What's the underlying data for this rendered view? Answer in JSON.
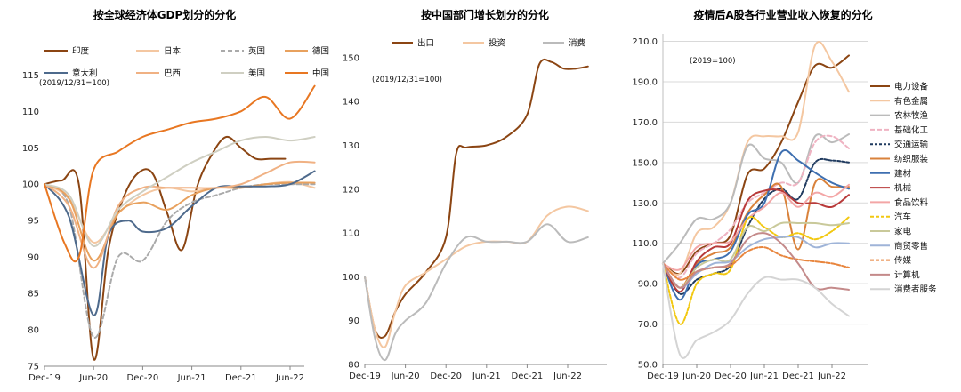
{
  "chart_data": [
    {
      "type": "line",
      "title": "按全球经济体GDP划分的分化",
      "note": "(2019/12/31=100)",
      "x_ticks": [
        "Dec-19",
        "Jun-20",
        "Dec-20",
        "Jun-21",
        "Dec-21",
        "Jun-22"
      ],
      "ylim": [
        75,
        117
      ],
      "y_ticks": [
        75,
        80,
        85,
        90,
        95,
        100,
        105,
        110,
        115
      ],
      "legend_position": "top",
      "series": [
        {
          "name": "印度",
          "color": "#8B4513",
          "dash": "",
          "x": [
            0,
            0.35,
            0.7,
            1,
            1.3,
            1.6,
            1.9,
            2.2,
            2.5,
            2.8,
            3.1,
            3.4,
            3.7,
            4,
            4.3,
            4.6,
            4.9
          ],
          "y": [
            100,
            100.5,
            100,
            76,
            91,
            98,
            101.5,
            101.5,
            96,
            91,
            99.5,
            104,
            106.5,
            105,
            103.5,
            103.5,
            103.5
          ]
        },
        {
          "name": "日本",
          "color": "#F4C7A1",
          "dash": "",
          "x": [
            0,
            0.5,
            1,
            1.5,
            2,
            2.5,
            3,
            3.5,
            4,
            4.5,
            5,
            5.5
          ],
          "y": [
            100,
            98,
            92,
            96,
            98.5,
            99.5,
            99,
            99.5,
            99.5,
            100,
            100.3,
            99.5
          ]
        },
        {
          "name": "英国",
          "color": "#AAAAAA",
          "dash": "5,3",
          "x": [
            0,
            0.5,
            1,
            1.5,
            2,
            2.5,
            3,
            3.5,
            4,
            4.5,
            5,
            5.5
          ],
          "y": [
            100,
            97,
            79,
            90,
            89.5,
            95,
            97.5,
            98.5,
            99.5,
            100,
            100,
            100
          ]
        },
        {
          "name": "德国",
          "color": "#E8A15E",
          "dash": "",
          "x": [
            0,
            0.5,
            1,
            1.5,
            2,
            2.5,
            3,
            3.5,
            4,
            4.5,
            5,
            5.5
          ],
          "y": [
            100,
            98,
            89.5,
            96,
            97.5,
            96.5,
            98.5,
            99.5,
            99.5,
            100,
            100.2,
            100.2
          ]
        },
        {
          "name": "意大利",
          "color": "#4E6A8C",
          "dash": "",
          "x": [
            0,
            0.5,
            1,
            1.3,
            1.7,
            2,
            2.5,
            3,
            3.5,
            4,
            4.5,
            5,
            5.5
          ],
          "y": [
            100,
            95.5,
            82,
            93,
            95,
            93.5,
            94,
            97,
            99.5,
            99.7,
            99.7,
            100,
            101.8
          ]
        },
        {
          "name": "巴西",
          "color": "#F0B183",
          "dash": "",
          "x": [
            0,
            0.5,
            1,
            1.5,
            2,
            2.5,
            3,
            3.5,
            4,
            4.5,
            5,
            5.5
          ],
          "y": [
            100,
            97,
            88.5,
            97,
            99.5,
            99.5,
            99.5,
            99.5,
            100,
            101.5,
            103,
            103
          ]
        },
        {
          "name": "美国",
          "color": "#CFCFC2",
          "dash": "",
          "x": [
            0,
            0.5,
            1,
            1.5,
            2,
            2.5,
            3,
            3.5,
            4,
            4.5,
            5,
            5.5
          ],
          "y": [
            100,
            98.5,
            91.5,
            96.5,
            99,
            101,
            103,
            104.5,
            106,
            106.5,
            106,
            106.5
          ]
        },
        {
          "name": "中国",
          "color": "#E87722",
          "dash": "",
          "x": [
            0,
            0.4,
            0.7,
            1,
            1.5,
            2,
            2.5,
            3,
            3.5,
            4,
            4.5,
            5,
            5.5
          ],
          "y": [
            100,
            92,
            90,
            102,
            104.5,
            106.5,
            107.5,
            108.5,
            109,
            110,
            112,
            109,
            113.5
          ]
        }
      ]
    },
    {
      "type": "line",
      "title": "按中国部门增长划分的分化",
      "note": "(2019/12/31=100)",
      "x_ticks": [
        "Dec-19",
        "Jun-20",
        "Dec-20",
        "Jun-21",
        "Dec-21",
        "Jun-22"
      ],
      "ylim": [
        80,
        152
      ],
      "y_ticks": [
        80,
        90,
        100,
        110,
        120,
        130,
        140,
        150
      ],
      "legend_position": "top",
      "series": [
        {
          "name": "出口",
          "color": "#8B4513",
          "dash": "",
          "x": [
            0,
            0.25,
            0.5,
            0.75,
            1,
            1.5,
            2,
            2.25,
            2.5,
            3,
            3.5,
            4,
            4.3,
            4.6,
            4.9,
            5.2,
            5.5
          ],
          "y": [
            100,
            88,
            86.5,
            92,
            96,
            101,
            109,
            128,
            129.5,
            130,
            132,
            137,
            148.5,
            149,
            147.5,
            147.5,
            148
          ]
        },
        {
          "name": "投资",
          "color": "#F4C7A1",
          "dash": "",
          "x": [
            0,
            0.25,
            0.5,
            0.75,
            1,
            1.5,
            2,
            2.5,
            3,
            3.5,
            4,
            4.5,
            5,
            5.5
          ],
          "y": [
            100,
            88,
            84,
            92,
            98,
            101,
            104,
            107,
            108,
            108,
            108,
            114,
            116,
            115
          ]
        },
        {
          "name": "消费",
          "color": "#BBBBBB",
          "dash": "",
          "x": [
            0,
            0.25,
            0.5,
            0.75,
            1,
            1.5,
            2,
            2.5,
            3,
            3.5,
            4,
            4.5,
            5,
            5.5
          ],
          "y": [
            100,
            86,
            81,
            87,
            90,
            94,
            103,
            109,
            108,
            108,
            108,
            112,
            108,
            109
          ]
        }
      ]
    },
    {
      "type": "line",
      "title": "疫情后A股各行业营业收入恢复的分化",
      "note": "(2019=100)",
      "x_ticks": [
        "Dec-19",
        "Jun-20",
        "Dec-20",
        "Jun-21",
        "Dec-21",
        "Jun-22"
      ],
      "ylim": [
        50,
        212
      ],
      "y_ticks": [
        "50.0",
        "70.0",
        "90.0",
        "110.0",
        "130.0",
        "150.0",
        "170.0",
        "190.0",
        "210.0"
      ],
      "legend_position": "right",
      "series": [
        {
          "name": "电力设备",
          "color": "#8B4513",
          "dash": "",
          "x": [
            0,
            0.5,
            1,
            1.5,
            2,
            2.5,
            3,
            3.5,
            4,
            4.5,
            5,
            5.5
          ],
          "y": [
            100,
            95,
            106,
            110,
            114,
            144,
            147,
            160,
            180,
            198,
            197,
            203
          ]
        },
        {
          "name": "有色金属",
          "color": "#F4C7A1",
          "dash": "",
          "x": [
            0,
            0.5,
            1,
            1.5,
            2,
            2.5,
            3,
            3.5,
            4,
            4.5,
            5,
            5.5
          ],
          "y": [
            100,
            95,
            115,
            118,
            130,
            160,
            163,
            163,
            165,
            208,
            200,
            185
          ]
        },
        {
          "name": "农林牧渔",
          "color": "#BBBBBB",
          "dash": "",
          "x": [
            0,
            0.5,
            1,
            1.5,
            2,
            2.5,
            3,
            3.5,
            4,
            4.5,
            5,
            5.5
          ],
          "y": [
            100,
            110,
            122,
            122,
            130,
            158,
            152,
            150,
            140,
            163,
            160,
            164
          ]
        },
        {
          "name": "基础化工",
          "color": "#EFB3C2",
          "dash": "5,3",
          "x": [
            0,
            0.5,
            1,
            1.5,
            2,
            2.5,
            3,
            3.5,
            4,
            4.5,
            5,
            5.5
          ],
          "y": [
            100,
            93,
            105,
            110,
            117,
            130,
            135,
            140,
            140,
            160,
            163,
            157
          ]
        },
        {
          "name": "交通运输",
          "color": "#1F3A5F",
          "dash": "3,2",
          "x": [
            0,
            0.5,
            1,
            1.5,
            2,
            2.5,
            3,
            3.5,
            4,
            4.5,
            5,
            5.5
          ],
          "y": [
            100,
            85,
            92,
            95,
            99,
            118,
            132,
            137,
            132,
            150,
            151,
            150
          ]
        },
        {
          "name": "纺织服装",
          "color": "#D9823B",
          "dash": "",
          "x": [
            0,
            0.5,
            1,
            1.5,
            2,
            2.5,
            3,
            3.5,
            4,
            4.5,
            5,
            5.5
          ],
          "y": [
            100,
            88,
            100,
            105,
            108,
            125,
            134,
            138,
            107,
            140,
            138,
            138
          ]
        },
        {
          "name": "建材",
          "color": "#3E6FB0",
          "dash": "",
          "x": [
            0,
            0.5,
            1,
            1.5,
            2,
            2.5,
            3,
            3.5,
            4,
            4.5,
            5,
            5.5
          ],
          "y": [
            100,
            82,
            99,
            102,
            106,
            124,
            130,
            155,
            151,
            145,
            140,
            137
          ]
        },
        {
          "name": "机械",
          "color": "#B83A3A",
          "dash": "",
          "x": [
            0,
            0.5,
            1,
            1.5,
            2,
            2.5,
            3,
            3.5,
            4,
            4.5,
            5,
            5.5
          ],
          "y": [
            100,
            86,
            101,
            108,
            110,
            131,
            136,
            136,
            130,
            130,
            128,
            134
          ]
        },
        {
          "name": "食品饮料",
          "color": "#F3A6A6",
          "dash": "",
          "x": [
            0,
            0.5,
            1,
            1.5,
            2,
            2.5,
            3,
            3.5,
            4,
            4.5,
            5,
            5.5
          ],
          "y": [
            100,
            97,
            108,
            110,
            111,
            122,
            128,
            135,
            128,
            135,
            133,
            139
          ]
        },
        {
          "name": "汽车",
          "color": "#F2C811",
          "dash": "4,2",
          "x": [
            0,
            0.5,
            1,
            1.5,
            2,
            2.5,
            3,
            3.5,
            4,
            4.5,
            5,
            5.5
          ],
          "y": [
            100,
            70,
            90,
            95,
            97,
            122,
            118,
            113,
            115,
            112,
            116,
            123
          ]
        },
        {
          "name": "家电",
          "color": "#C9C99A",
          "dash": "",
          "x": [
            0,
            0.5,
            1,
            1.5,
            2,
            2.5,
            3,
            3.5,
            4,
            4.5,
            5,
            5.5
          ],
          "y": [
            100,
            88,
            98,
            102,
            102,
            118,
            116,
            120,
            120,
            120,
            119,
            120
          ]
        },
        {
          "name": "商贸零售",
          "color": "#9FB4D8",
          "dash": "",
          "x": [
            0,
            0.5,
            1,
            1.5,
            2,
            2.5,
            3,
            3.5,
            4,
            4.5,
            5,
            5.5
          ],
          "y": [
            100,
            88,
            95,
            100,
            101,
            108,
            112,
            113,
            113,
            108,
            110,
            110
          ]
        },
        {
          "name": "传媒",
          "color": "#E8853D",
          "dash": "4,2",
          "x": [
            0,
            0.5,
            1,
            1.5,
            2,
            2.5,
            3,
            3.5,
            4,
            4.5,
            5,
            5.5
          ],
          "y": [
            100,
            92,
            96,
            98,
            99,
            106,
            108,
            104,
            102,
            101,
            100,
            98
          ]
        },
        {
          "name": "计算机",
          "color": "#C48A8A",
          "dash": "",
          "x": [
            0,
            0.5,
            1,
            1.5,
            2,
            2.5,
            3,
            3.5,
            4,
            4.5,
            5,
            5.5
          ],
          "y": [
            100,
            88,
            96,
            98,
            100,
            112,
            115,
            110,
            100,
            88,
            88,
            87
          ]
        },
        {
          "name": "消费者服务",
          "color": "#D4D4D4",
          "dash": "",
          "x": [
            0,
            0.5,
            1,
            1.5,
            2,
            2.5,
            3,
            3.5,
            4,
            4.5,
            5,
            5.5
          ],
          "y": [
            100,
            55,
            62,
            66,
            72,
            85,
            93,
            92,
            92,
            88,
            80,
            74
          ]
        }
      ]
    }
  ]
}
